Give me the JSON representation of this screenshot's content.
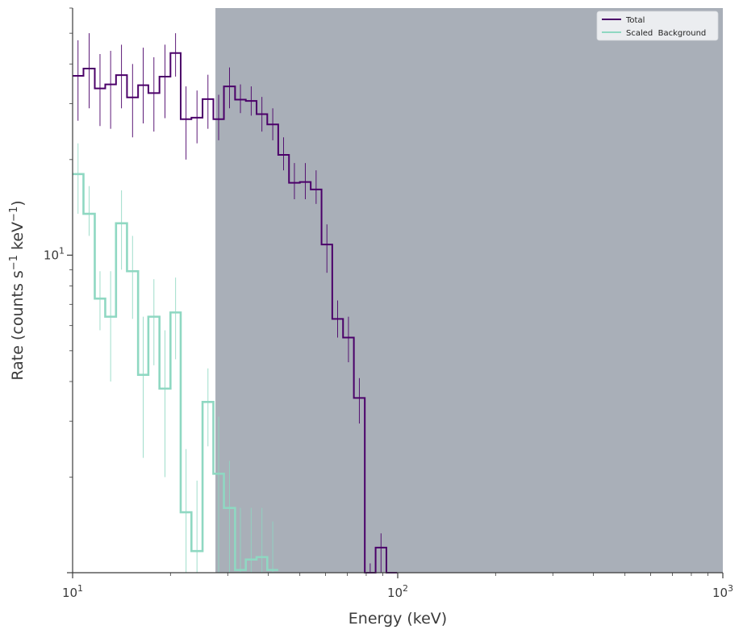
{
  "chart_data": {
    "type": "line",
    "xlabel": "Energy (keV)",
    "ylabel": "Rate (counts s",
    "ylabel_sup1": "−1",
    "ylabel_mid": " keV",
    "ylabel_sup2": "−1",
    "ylabel_end": ")",
    "x_scale": "log",
    "y_scale": "log",
    "xlim": [
      10,
      1000
    ],
    "ylim": [
      1.0,
      60
    ],
    "grid": false,
    "legend_position": "top-right",
    "x_ticks": [
      {
        "value": 10,
        "base": "10",
        "exp": "1"
      },
      {
        "value": 100,
        "base": "10",
        "exp": "2"
      },
      {
        "value": 1000,
        "base": "10",
        "exp": "3"
      }
    ],
    "y_ticks": [
      {
        "value": 10,
        "base": "10",
        "exp": "1"
      }
    ],
    "excluded_region": {
      "from": 27.5,
      "to": 1000,
      "color": "#a9afb8"
    },
    "bin_edges": [
      10.0,
      10.8,
      11.7,
      12.6,
      13.6,
      14.7,
      15.9,
      17.1,
      18.5,
      20.0,
      21.5,
      23.2,
      25.1,
      27.1,
      29.2,
      31.6,
      34.1,
      36.8,
      39.7,
      42.9,
      46.3,
      50.0,
      54.0,
      58.3,
      62.9,
      67.9,
      73.3,
      79.2,
      85.5,
      92.3,
      99.6,
      107.6,
      116.2,
      125.5,
      135.4,
      146.2
    ],
    "series": [
      {
        "name": "Total",
        "color": "#4b0069",
        "values": [
          36.7,
          38.7,
          33.5,
          34.5,
          36.9,
          31.4,
          34.3,
          32.4,
          36.5,
          43.3,
          26.8,
          27.1,
          31.0,
          26.8,
          34.0,
          30.9,
          30.6,
          27.8,
          25.8,
          20.7,
          16.9,
          17.0,
          16.1,
          10.8,
          6.3,
          5.5,
          3.55,
          1.0,
          1.2,
          1.0
        ],
        "err_lo": [
          26.5,
          29,
          25.5,
          25,
          29,
          23.5,
          26,
          24.5,
          27,
          36.5,
          20,
          22.5,
          25,
          23,
          29,
          28,
          27.5,
          24.5,
          23,
          18.5,
          15,
          15,
          14.5,
          8.8,
          5.5,
          4.6,
          2.95,
          1.0,
          1.0,
          1.0
        ],
        "err_hi": [
          47.5,
          50,
          43,
          44,
          46,
          40,
          45,
          42,
          46,
          50,
          34,
          33,
          37,
          32,
          39,
          34.5,
          34,
          31.5,
          29,
          23.5,
          19.5,
          19.5,
          18.5,
          12.5,
          7.2,
          6.4,
          4.1,
          1.07,
          1.33,
          1.0
        ]
      },
      {
        "name": "Scaled  Background",
        "color": "#8fd8c2",
        "values": [
          18.0,
          13.5,
          7.3,
          6.4,
          12.6,
          8.9,
          4.2,
          6.4,
          3.8,
          6.6,
          1.55,
          1.17,
          3.45,
          2.05,
          1.6,
          1.02,
          1.1,
          1.12,
          1.02
        ],
        "err_lo": [
          13.5,
          11.5,
          5.8,
          4.0,
          9.0,
          6.3,
          2.3,
          4.5,
          2.0,
          4.7,
          1.0,
          1.0,
          2.5,
          1.0,
          1.0,
          1.0,
          1.0,
          1.0,
          1.0
        ],
        "err_hi": [
          22.5,
          16.5,
          8.9,
          8.9,
          16.0,
          11.5,
          6.4,
          8.4,
          5.8,
          8.5,
          2.45,
          1.95,
          4.4,
          3.1,
          2.25,
          1.6,
          1.6,
          1.6,
          1.45
        ]
      }
    ]
  }
}
